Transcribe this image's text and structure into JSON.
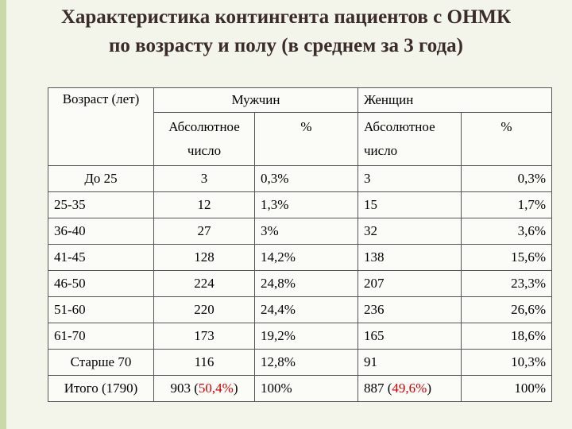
{
  "title": [
    "Характеристика контингента пациентов с ОНМК",
    "по возрасту и полу (в среднем за 3 года)"
  ],
  "table": {
    "header": {
      "age": "Возраст (лет)",
      "men": "Мужчин",
      "women": "Женщин",
      "sub": [
        "Абсолютное число",
        "%",
        "Абсолютное число",
        "%"
      ]
    },
    "rows": [
      [
        "До 25",
        "3",
        "0,3%",
        "3",
        "0,3%"
      ],
      [
        "25-35",
        "12",
        "1,3%",
        "15",
        "1,7%"
      ],
      [
        "36-40",
        "27",
        "3%",
        "32",
        "3,6%"
      ],
      [
        "41-45",
        "128",
        "14,2%",
        "138",
        "15,6%"
      ],
      [
        "46-50",
        "224",
        "24,8%",
        "207",
        "23,3%"
      ],
      [
        "51-60",
        "220",
        "24,4%",
        "236",
        "26,6%"
      ],
      [
        "61-70",
        "173",
        "19,2%",
        "165",
        "18,6%"
      ],
      [
        "Старше 70",
        "116",
        "12,8%",
        "91",
        "10,3%"
      ],
      [
        "Итого (1790)",
        [
          "903 (",
          "50,4%",
          ")"
        ],
        "100%",
        [
          "887 (",
          "49,6%",
          ")"
        ],
        "100%"
      ]
    ]
  }
}
